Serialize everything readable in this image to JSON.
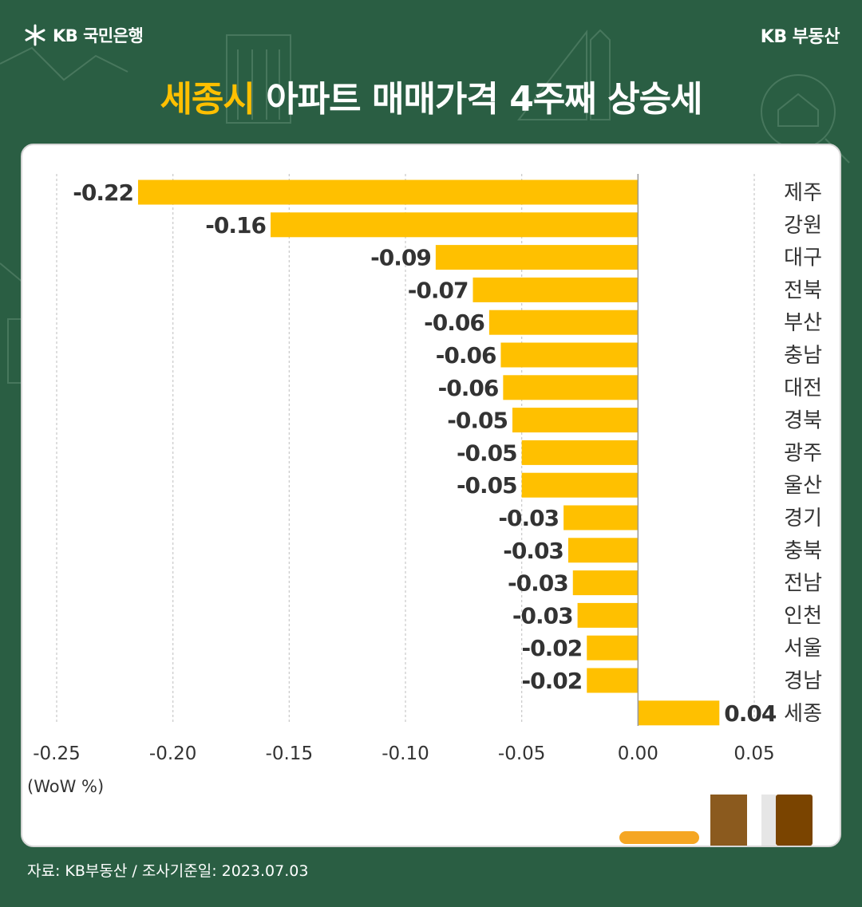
{
  "header": {
    "bank_name": "KB 국민은행",
    "brand_name": "KB 부동산",
    "title_highlight": "세종시",
    "title_rest": " 아파트 매매가격 4주째 상승세"
  },
  "colors": {
    "background": "#2a5e43",
    "bar": "#ffc000",
    "highlight": "#ffc000",
    "card": "#ffffff"
  },
  "icons": [
    "kb-star-icon",
    "building-icon",
    "ruler-icon",
    "house-magnifier-icon",
    "book-icon"
  ],
  "chart_data": {
    "type": "bar",
    "orientation": "horizontal",
    "categories": [
      "제주",
      "강원",
      "대구",
      "전북",
      "부산",
      "충남",
      "대전",
      "경북",
      "광주",
      "울산",
      "경기",
      "충북",
      "전남",
      "인천",
      "서울",
      "경남",
      "세종"
    ],
    "values": [
      -0.215,
      -0.158,
      -0.087,
      -0.071,
      -0.064,
      -0.059,
      -0.058,
      -0.054,
      -0.05,
      -0.05,
      -0.032,
      -0.03,
      -0.028,
      -0.026,
      -0.022,
      -0.022,
      0.035
    ],
    "data_labels": [
      "-0.22",
      "-0.16",
      "-0.09",
      "-0.07",
      "-0.06",
      "-0.06",
      "-0.06",
      "-0.05",
      "-0.05",
      "-0.05",
      "-0.03",
      "-0.03",
      "-0.03",
      "-0.03",
      "-0.02",
      "-0.02",
      "0.04"
    ],
    "xlim": [
      -0.25,
      0.05
    ],
    "x_ticks": [
      "-0.25",
      "-0.20",
      "-0.15",
      "-0.10",
      "-0.05",
      "0.00",
      "0.05"
    ],
    "x_tick_values": [
      -0.25,
      -0.2,
      -0.15,
      -0.1,
      -0.05,
      0,
      0.05
    ],
    "unit_label": "(WoW %)",
    "grid": "vertical dashed",
    "category_labels_side": "right"
  },
  "footer": {
    "source": "자료: KB부동산 / 조사기준일: 2023.07.03"
  }
}
